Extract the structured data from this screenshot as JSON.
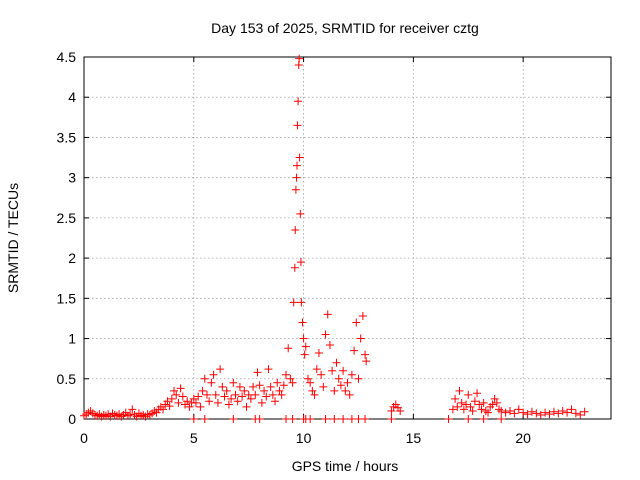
{
  "chart_data": {
    "type": "scatter",
    "title": "Day 153 of 2025, SRMTID for receiver cztg",
    "xlabel": "GPS time / hours",
    "ylabel": "SRMTID / TECUs",
    "xlim": [
      0,
      24
    ],
    "ylim": [
      0,
      4.5
    ],
    "xticks": [
      0,
      5,
      10,
      15,
      20
    ],
    "xtick_labels": [
      "0",
      "5",
      "10",
      "15",
      "20"
    ],
    "yticks": [
      0,
      0.5,
      1,
      1.5,
      2,
      2.5,
      3,
      3.5,
      4,
      4.5
    ],
    "ytick_labels": [
      "0",
      "0.5",
      "1",
      "1.5",
      "2",
      "2.5",
      "3",
      "3.5",
      "4",
      "4.5"
    ],
    "grid": true,
    "marker": "plus",
    "color": "#ff0000",
    "series": [
      {
        "name": "SRMTID",
        "points": [
          [
            0.0,
            0.04
          ],
          [
            0.1,
            0.06
          ],
          [
            0.2,
            0.08
          ],
          [
            0.3,
            0.1
          ],
          [
            0.4,
            0.07
          ],
          [
            0.5,
            0.05
          ],
          [
            0.6,
            0.04
          ],
          [
            0.7,
            0.06
          ],
          [
            0.8,
            0.03
          ],
          [
            0.9,
            0.05
          ],
          [
            1.0,
            0.04
          ],
          [
            1.1,
            0.06
          ],
          [
            1.2,
            0.03
          ],
          [
            1.3,
            0.07
          ],
          [
            1.4,
            0.05
          ],
          [
            1.5,
            0.04
          ],
          [
            1.6,
            0.06
          ],
          [
            1.7,
            0.03
          ],
          [
            1.8,
            0.05
          ],
          [
            1.9,
            0.08
          ],
          [
            2.0,
            0.04
          ],
          [
            2.1,
            0.06
          ],
          [
            2.2,
            0.12
          ],
          [
            2.3,
            0.05
          ],
          [
            2.4,
            0.03
          ],
          [
            2.5,
            0.07
          ],
          [
            2.6,
            0.04
          ],
          [
            2.7,
            0.05
          ],
          [
            2.8,
            0.03
          ],
          [
            2.9,
            0.06
          ],
          [
            3.0,
            0.05
          ],
          [
            3.1,
            0.07
          ],
          [
            3.2,
            0.1
          ],
          [
            3.3,
            0.08
          ],
          [
            3.4,
            0.12
          ],
          [
            3.5,
            0.15
          ],
          [
            3.6,
            0.12
          ],
          [
            3.7,
            0.18
          ],
          [
            3.8,
            0.22
          ],
          [
            3.9,
            0.16
          ],
          [
            4.0,
            0.25
          ],
          [
            4.1,
            0.35
          ],
          [
            4.2,
            0.3
          ],
          [
            4.3,
            0.2
          ],
          [
            4.4,
            0.38
          ],
          [
            4.5,
            0.28
          ],
          [
            4.6,
            0.18
          ],
          [
            4.7,
            0.22
          ],
          [
            4.8,
            0.15
          ],
          [
            4.9,
            0.2
          ],
          [
            5.0,
            0.25
          ],
          [
            5.1,
            0.2
          ],
          [
            5.2,
            0.28
          ],
          [
            5.3,
            0.15
          ],
          [
            5.4,
            0.35
          ],
          [
            5.5,
            0.5
          ],
          [
            5.6,
            0.3
          ],
          [
            5.7,
            0.22
          ],
          [
            5.8,
            0.45
          ],
          [
            5.9,
            0.55
          ],
          [
            6.0,
            0.3
          ],
          [
            6.1,
            0.2
          ],
          [
            6.2,
            0.62
          ],
          [
            6.3,
            0.4
          ],
          [
            6.4,
            0.28
          ],
          [
            6.5,
            0.35
          ],
          [
            6.6,
            0.18
          ],
          [
            6.7,
            0.25
          ],
          [
            6.8,
            0.45
          ],
          [
            6.9,
            0.3
          ],
          [
            7.0,
            0.22
          ],
          [
            7.1,
            0.4
          ],
          [
            7.2,
            0.28
          ],
          [
            7.3,
            0.35
          ],
          [
            7.4,
            0.15
          ],
          [
            7.5,
            0.3
          ],
          [
            7.6,
            0.25
          ],
          [
            7.7,
            0.4
          ],
          [
            7.8,
            0.3
          ],
          [
            7.9,
            0.58
          ],
          [
            8.0,
            0.42
          ],
          [
            8.1,
            0.2
          ],
          [
            8.2,
            0.35
          ],
          [
            8.3,
            0.28
          ],
          [
            8.4,
            0.62
          ],
          [
            8.5,
            0.4
          ],
          [
            8.6,
            0.3
          ],
          [
            8.7,
            0.22
          ],
          [
            8.8,
            0.45
          ],
          [
            8.9,
            0.35
          ],
          [
            9.0,
            0.3
          ],
          [
            9.1,
            0.42
          ],
          [
            9.2,
            0.55
          ],
          [
            9.3,
            0.88
          ],
          [
            9.4,
            0.5
          ],
          [
            9.5,
            0.45
          ],
          [
            9.55,
            1.45
          ],
          [
            9.6,
            1.88
          ],
          [
            9.62,
            2.35
          ],
          [
            9.65,
            2.85
          ],
          [
            9.68,
            3.0
          ],
          [
            9.7,
            3.15
          ],
          [
            9.72,
            3.65
          ],
          [
            9.75,
            3.95
          ],
          [
            9.78,
            4.4
          ],
          [
            9.8,
            4.48
          ],
          [
            9.82,
            3.25
          ],
          [
            9.85,
            2.55
          ],
          [
            9.88,
            1.95
          ],
          [
            9.9,
            1.45
          ],
          [
            9.95,
            1.2
          ],
          [
            10.0,
            1.0
          ],
          [
            10.05,
            0.8
          ],
          [
            10.1,
            0.9
          ],
          [
            10.2,
            0.5
          ],
          [
            10.3,
            0.45
          ],
          [
            10.4,
            0.35
          ],
          [
            10.5,
            0.3
          ],
          [
            10.6,
            0.62
          ],
          [
            10.7,
            0.82
          ],
          [
            10.8,
            0.55
          ],
          [
            10.9,
            0.4
          ],
          [
            11.0,
            1.05
          ],
          [
            11.1,
            1.3
          ],
          [
            11.2,
            0.92
          ],
          [
            11.3,
            0.6
          ],
          [
            11.4,
            0.35
          ],
          [
            11.5,
            0.7
          ],
          [
            11.6,
            0.5
          ],
          [
            11.7,
            0.42
          ],
          [
            11.8,
            0.6
          ],
          [
            11.9,
            0.35
          ],
          [
            12.0,
            0.45
          ],
          [
            12.1,
            0.3
          ],
          [
            12.2,
            0.55
          ],
          [
            12.3,
            0.85
          ],
          [
            12.4,
            1.2
          ],
          [
            12.5,
            0.5
          ],
          [
            12.6,
            1.0
          ],
          [
            12.7,
            1.28
          ],
          [
            12.8,
            0.8
          ],
          [
            12.85,
            0.72
          ],
          [
            14.0,
            0.1
          ],
          [
            14.1,
            0.15
          ],
          [
            14.2,
            0.18
          ],
          [
            14.3,
            0.14
          ],
          [
            14.4,
            0.1
          ],
          [
            16.8,
            0.12
          ],
          [
            16.9,
            0.25
          ],
          [
            17.0,
            0.15
          ],
          [
            17.1,
            0.35
          ],
          [
            17.2,
            0.2
          ],
          [
            17.3,
            0.12
          ],
          [
            17.4,
            0.18
          ],
          [
            17.5,
            0.3
          ],
          [
            17.6,
            0.15
          ],
          [
            17.7,
            0.1
          ],
          [
            17.8,
            0.22
          ],
          [
            17.9,
            0.32
          ],
          [
            18.0,
            0.18
          ],
          [
            18.1,
            0.12
          ],
          [
            18.2,
            0.2
          ],
          [
            18.3,
            0.1
          ],
          [
            18.4,
            0.08
          ],
          [
            18.5,
            0.15
          ],
          [
            18.6,
            0.18
          ],
          [
            18.7,
            0.25
          ],
          [
            18.8,
            0.2
          ],
          [
            18.9,
            0.12
          ],
          [
            19.0,
            0.1
          ],
          [
            19.2,
            0.08
          ],
          [
            19.4,
            0.1
          ],
          [
            19.6,
            0.07
          ],
          [
            19.8,
            0.12
          ],
          [
            20.0,
            0.08
          ],
          [
            20.2,
            0.06
          ],
          [
            20.4,
            0.09
          ],
          [
            20.6,
            0.07
          ],
          [
            20.8,
            0.05
          ],
          [
            21.0,
            0.08
          ],
          [
            21.2,
            0.06
          ],
          [
            21.4,
            0.09
          ],
          [
            21.6,
            0.07
          ],
          [
            21.8,
            0.1
          ],
          [
            22.0,
            0.08
          ],
          [
            22.2,
            0.12
          ],
          [
            22.4,
            0.07
          ],
          [
            22.6,
            0.05
          ],
          [
            22.8,
            0.09
          ]
        ]
      }
    ],
    "zero_points_x": [
      5.0,
      5.5,
      6.8,
      7.8,
      8.0,
      9.2,
      9.5,
      10.0,
      10.1,
      10.3,
      11.0,
      11.4,
      11.8,
      12.2,
      12.5,
      12.8,
      14.0,
      16.6,
      17.5,
      18.2,
      19.0
    ]
  }
}
